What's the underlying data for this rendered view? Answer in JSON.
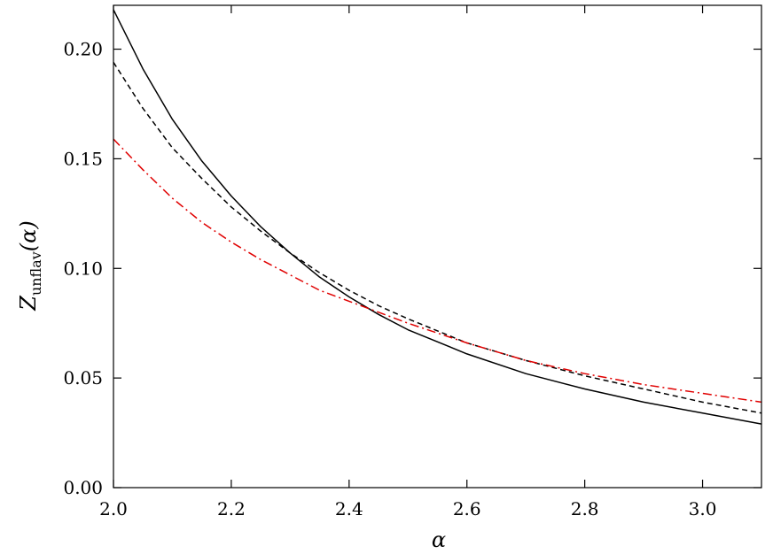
{
  "chart_data": {
    "type": "line",
    "title": "",
    "xlabel": "α",
    "ylabel": {
      "main": "Z",
      "subscript": "unflav",
      "suffix": "(α)"
    },
    "xlim": [
      2.0,
      3.1
    ],
    "ylim": [
      0.0,
      0.22
    ],
    "x_ticks": [
      {
        "value": 2.0,
        "label": "2.0"
      },
      {
        "value": 2.2,
        "label": "2.2"
      },
      {
        "value": 2.4,
        "label": "2.4"
      },
      {
        "value": 2.6,
        "label": "2.6"
      },
      {
        "value": 2.8,
        "label": "2.8"
      },
      {
        "value": 3.0,
        "label": "3.0"
      }
    ],
    "y_ticks": [
      {
        "value": 0.0,
        "label": "0.00"
      },
      {
        "value": 0.05,
        "label": "0.05"
      },
      {
        "value": 0.1,
        "label": "0.10"
      },
      {
        "value": 0.15,
        "label": "0.15"
      },
      {
        "value": 0.2,
        "label": "0.20"
      }
    ],
    "grid": false,
    "legend": "none",
    "series": [
      {
        "style": "solid",
        "color": "#000000",
        "x": [
          2.0,
          2.05,
          2.1,
          2.15,
          2.2,
          2.25,
          2.3,
          2.35,
          2.4,
          2.45,
          2.5,
          2.6,
          2.7,
          2.8,
          2.9,
          3.0,
          3.1
        ],
        "y": [
          0.218,
          0.191,
          0.168,
          0.149,
          0.133,
          0.119,
          0.107,
          0.096,
          0.087,
          0.079,
          0.072,
          0.061,
          0.052,
          0.045,
          0.039,
          0.034,
          0.029
        ]
      },
      {
        "style": "dashed",
        "color": "#000000",
        "x": [
          2.0,
          2.05,
          2.1,
          2.15,
          2.2,
          2.25,
          2.3,
          2.35,
          2.4,
          2.45,
          2.5,
          2.6,
          2.7,
          2.8,
          2.9,
          3.0,
          3.1
        ],
        "y": [
          0.194,
          0.173,
          0.155,
          0.141,
          0.128,
          0.117,
          0.107,
          0.098,
          0.09,
          0.083,
          0.077,
          0.066,
          0.058,
          0.051,
          0.045,
          0.039,
          0.034
        ]
      },
      {
        "style": "dashdot",
        "color": "#e00000",
        "x": [
          2.0,
          2.05,
          2.1,
          2.15,
          2.2,
          2.25,
          2.3,
          2.35,
          2.4,
          2.45,
          2.5,
          2.6,
          2.7,
          2.8,
          2.9,
          3.0,
          3.1
        ],
        "y": [
          0.159,
          0.145,
          0.132,
          0.121,
          0.112,
          0.104,
          0.097,
          0.09,
          0.085,
          0.08,
          0.075,
          0.066,
          0.058,
          0.052,
          0.047,
          0.043,
          0.039
        ]
      }
    ]
  }
}
